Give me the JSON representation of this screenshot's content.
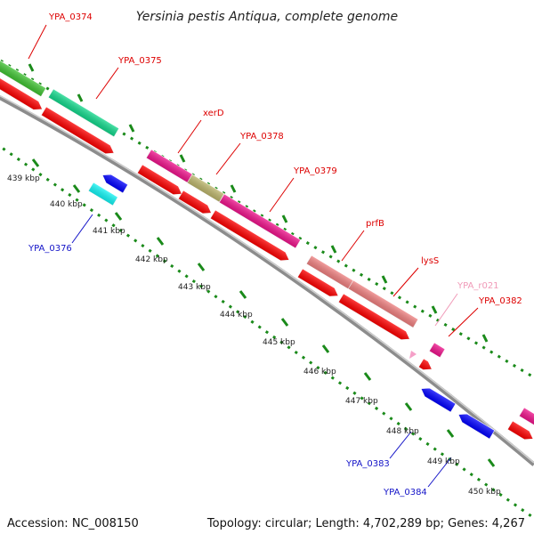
{
  "title": "Yersinia pestis Antiqua, complete genome",
  "footer": {
    "accession": "Accession: NC_008150",
    "summary": "Topology: circular; Length: 4,702,289 bp; Genes: 4,267"
  },
  "kbp_labels": [
    "439 kbp",
    "440 kbp",
    "441 kbp",
    "442 kbp",
    "443 kbp",
    "444 kbp",
    "445 kbp",
    "446 kbp",
    "447 kbp",
    "448 kbp",
    "449 kbp",
    "450 kbp"
  ],
  "gene_labels": [
    {
      "name": "YPA_0374",
      "color": "#dd0000"
    },
    {
      "name": "YPA_0375",
      "color": "#dd0000"
    },
    {
      "name": "xerD",
      "color": "#dd0000"
    },
    {
      "name": "YPA_0378",
      "color": "#dd0000"
    },
    {
      "name": "YPA_0379",
      "color": "#dd0000"
    },
    {
      "name": "prfB",
      "color": "#dd0000"
    },
    {
      "name": "lysS",
      "color": "#dd0000"
    },
    {
      "name": "YPA_r021",
      "color": "#f09ab8"
    },
    {
      "name": "YPA_0382",
      "color": "#dd0000"
    },
    {
      "name": "YPA_0376",
      "color": "#1414c8"
    },
    {
      "name": "YPA_0383",
      "color": "#1414c8"
    },
    {
      "name": "YPA_0384",
      "color": "#1414c8"
    }
  ],
  "colors": {
    "backbone": "#8c8c8c",
    "dotted_track": "#1a8a1a",
    "cds_forward": "#ff0000",
    "cds_reverse": "#0000ff",
    "magenta": "#f0138c",
    "green": "#3fc332",
    "teal": "#12d98c",
    "olive": "#bdb66c",
    "salmon": "#f08080",
    "pink_rna": "#f5a0c8",
    "cyan": "#12f5f5"
  }
}
